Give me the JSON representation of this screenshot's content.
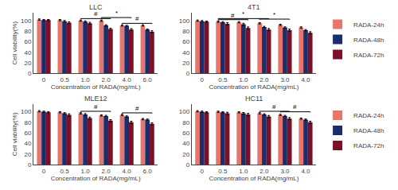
{
  "chart_data": [
    {
      "type": "bar",
      "title": "LLC",
      "xlabel": "Concentration of RADA(mg/mL)",
      "ylabel": "Cell viability(%)",
      "categories": [
        "0",
        "0.5",
        "1.0",
        "2.0",
        "4.0",
        "6.0"
      ],
      "series": [
        {
          "name": "RADA-24h",
          "color": "#E8756A",
          "values": [
            102,
            101,
            100,
            100,
            91,
            91
          ],
          "errors": [
            1.2,
            1.2,
            1.2,
            1.2,
            1.2,
            1.2
          ]
        },
        {
          "name": "RADA-48h",
          "color": "#1C2D6E",
          "values": [
            101,
            99,
            98,
            91,
            90,
            83
          ],
          "errors": [
            1.2,
            1.2,
            1.5,
            1.2,
            1.2,
            1.2
          ]
        },
        {
          "name": "RADA-72h",
          "color": "#7B1028",
          "values": [
            101,
            96,
            95,
            84,
            83,
            79
          ],
          "errors": [
            1.2,
            1.8,
            1.8,
            1.8,
            1.8,
            1.8
          ]
        }
      ],
      "ylim": [
        0,
        115
      ],
      "yticks": [
        0,
        20,
        40,
        60,
        80,
        100
      ],
      "grid": false,
      "annotations": [
        {
          "text": "#",
          "span": [
            "1.0",
            "2.0"
          ]
        },
        {
          "text": "#",
          "span": [
            "4.0",
            "6.0"
          ]
        },
        {
          "text": "*",
          "span": [
            "2.0",
            "4.0"
          ]
        }
      ]
    },
    {
      "type": "bar",
      "title": "4T1",
      "xlabel": "Concentration of RADA(mg/mL)",
      "categories": [
        "0",
        "0.5",
        "1.0",
        "2.0",
        "3.0",
        "4.0"
      ],
      "series": [
        {
          "name": "RADA-24h",
          "color": "#E8756A",
          "values": [
            100,
            98,
            97,
            95,
            92,
            87
          ],
          "errors": [
            1.2,
            1.2,
            1.2,
            1.2,
            1.2,
            1.2
          ]
        },
        {
          "name": "RADA-48h",
          "color": "#1C2D6E",
          "values": [
            99,
            97,
            93,
            88,
            87,
            82
          ],
          "errors": [
            1.2,
            1.2,
            2.0,
            1.2,
            1.2,
            1.2
          ]
        },
        {
          "name": "RADA-72h",
          "color": "#7B1028",
          "values": [
            98,
            94,
            86,
            83,
            82,
            77
          ],
          "errors": [
            1.2,
            2.0,
            2.0,
            2.0,
            2.0,
            2.0
          ]
        }
      ],
      "ylim": [
        0,
        115
      ],
      "yticks": [
        0,
        20,
        40,
        60,
        80,
        100
      ],
      "grid": false,
      "legend": "upper right",
      "annotations": [
        {
          "text": "#",
          "span": [
            "0.5",
            "1.0"
          ]
        },
        {
          "text": "*",
          "span": [
            "0.5",
            "2.0"
          ]
        },
        {
          "text": "*",
          "span": [
            "2.0",
            "3.0"
          ]
        }
      ]
    },
    {
      "type": "bar",
      "title": "MLE12",
      "xlabel": "Concentration of RADA(mg/mL)",
      "ylabel": "Cell viability(%)",
      "categories": [
        "0",
        "0.5",
        "1.0",
        "2.0",
        "4.0",
        "6.0"
      ],
      "series": [
        {
          "name": "RADA-24h",
          "color": "#E8756A",
          "values": [
            101,
            99,
            97,
            93,
            94,
            86
          ],
          "errors": [
            1.2,
            1.2,
            1.2,
            1.2,
            1.2,
            1.2
          ]
        },
        {
          "name": "RADA-48h",
          "color": "#1C2D6E",
          "values": [
            100,
            97,
            95,
            92,
            91,
            85
          ],
          "errors": [
            1.2,
            1.2,
            1.5,
            1.2,
            1.2,
            1.2
          ]
        },
        {
          "name": "RADA-72h",
          "color": "#7B1028",
          "values": [
            99,
            94,
            88,
            83,
            80,
            77
          ],
          "errors": [
            1.2,
            2.0,
            2.0,
            2.0,
            2.0,
            2.0
          ]
        }
      ],
      "ylim": [
        0,
        115
      ],
      "yticks": [
        0,
        20,
        40,
        60,
        80,
        100
      ],
      "grid": false,
      "annotations": [
        {
          "text": "#",
          "span": [
            "1.0",
            "2.0"
          ]
        },
        {
          "text": "#",
          "span": [
            "4.0",
            "6.0"
          ]
        }
      ]
    },
    {
      "type": "bar",
      "title": "HC11",
      "xlabel": "Concentration of RADA(mg/mL)",
      "categories": [
        "0",
        "0.5",
        "1.0",
        "2.0",
        "3.0",
        "4.0"
      ],
      "series": [
        {
          "name": "RADA-24h",
          "color": "#E8756A",
          "values": [
            101,
            100,
            99,
            97,
            94,
            87
          ],
          "errors": [
            1.2,
            1.2,
            1.2,
            1.2,
            1.2,
            1.2
          ]
        },
        {
          "name": "RADA-48h",
          "color": "#1C2D6E",
          "values": [
            100,
            99,
            97,
            95,
            92,
            85
          ],
          "errors": [
            1.2,
            1.2,
            1.5,
            1.2,
            1.2,
            1.2
          ]
        },
        {
          "name": "RADA-72h",
          "color": "#7B1028",
          "values": [
            99,
            97,
            95,
            91,
            87,
            80
          ],
          "errors": [
            1.2,
            2.0,
            2.0,
            2.0,
            2.0,
            2.0
          ]
        }
      ],
      "ylim": [
        0,
        115
      ],
      "yticks": [
        0,
        20,
        40,
        60,
        80,
        100
      ],
      "grid": false,
      "legend": "upper right",
      "annotations": [
        {
          "text": "#",
          "span": [
            "2.0",
            "3.0"
          ]
        },
        {
          "text": "#",
          "span": [
            "3.0",
            "4.0"
          ]
        }
      ]
    }
  ]
}
